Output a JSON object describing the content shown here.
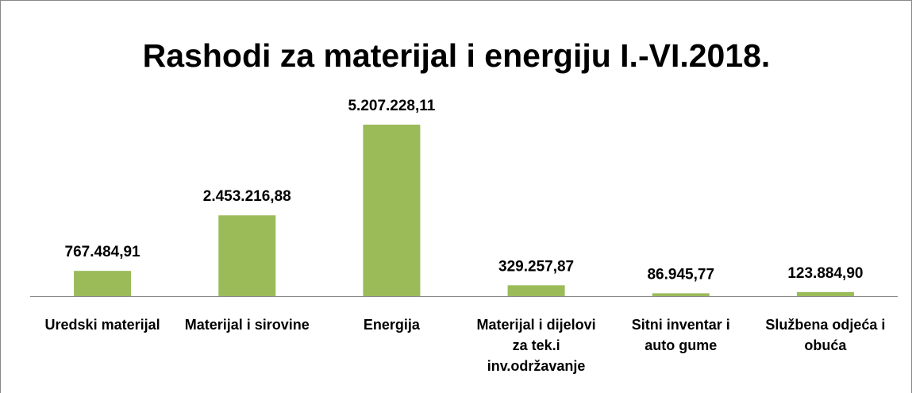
{
  "chart_data": {
    "type": "bar",
    "title": "Rashodi za materijal i energiju I.-VI.2018.",
    "categories": [
      "Uredski materijal",
      "Materijal i sirovine",
      "Energija",
      "Materijal i dijelovi za tek.i inv.održavanje",
      "Sitni inventar i auto gume",
      "Službena odjeća i obuća"
    ],
    "values": [
      767484.91,
      2453216.88,
      5207228.11,
      329257.87,
      86945.77,
      123884.9
    ],
    "value_labels": [
      "767.484,91",
      "2.453.216,88",
      "5.207.228,11",
      "329.257,87",
      "86.945,77",
      "123.884,90"
    ],
    "color": "#9bbb59"
  }
}
